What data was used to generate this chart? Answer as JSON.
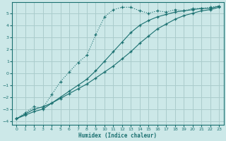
{
  "xlabel": "Humidex (Indice chaleur)",
  "bg_color": "#cce8e8",
  "grid_color": "#aacccc",
  "line_color": "#1a7070",
  "xlim": [
    -0.5,
    23.5
  ],
  "ylim": [
    -4.3,
    5.9
  ],
  "xticks": [
    0,
    1,
    2,
    3,
    4,
    5,
    6,
    7,
    8,
    9,
    10,
    11,
    12,
    13,
    14,
    15,
    16,
    17,
    18,
    19,
    20,
    21,
    22,
    23
  ],
  "yticks": [
    -4,
    -3,
    -2,
    -1,
    0,
    1,
    2,
    3,
    4,
    5
  ],
  "curve1_x": [
    0,
    1,
    2,
    3,
    4,
    5,
    6,
    7,
    8,
    9,
    10,
    11,
    12,
    13,
    14,
    15,
    16,
    17,
    18,
    19,
    20,
    21,
    22,
    23
  ],
  "curve1_y": [
    -3.8,
    -3.3,
    -2.8,
    -2.9,
    -1.8,
    -0.7,
    0.1,
    0.9,
    1.5,
    3.2,
    4.7,
    5.3,
    5.5,
    5.5,
    5.2,
    5.0,
    5.2,
    5.1,
    5.3,
    5.2,
    5.4,
    5.4,
    5.5,
    5.6
  ],
  "curve2_x": [
    0,
    1,
    2,
    3,
    4,
    5,
    6,
    7,
    8,
    9,
    10,
    11,
    12,
    13,
    14,
    15,
    16,
    17,
    18,
    19,
    20,
    21,
    22,
    23
  ],
  "curve2_y": [
    -3.8,
    -3.4,
    -3.0,
    -2.8,
    -2.5,
    -2.0,
    -1.5,
    -1.0,
    -0.5,
    0.2,
    1.0,
    1.8,
    2.6,
    3.4,
    4.0,
    4.4,
    4.7,
    4.9,
    5.1,
    5.2,
    5.3,
    5.4,
    5.4,
    5.6
  ],
  "curve3_x": [
    0,
    1,
    2,
    3,
    4,
    5,
    6,
    7,
    8,
    9,
    10,
    11,
    12,
    13,
    14,
    15,
    16,
    17,
    18,
    19,
    20,
    21,
    22,
    23
  ],
  "curve3_y": [
    -3.8,
    -3.5,
    -3.2,
    -3.0,
    -2.5,
    -2.1,
    -1.7,
    -1.3,
    -0.9,
    -0.4,
    0.1,
    0.6,
    1.2,
    1.8,
    2.5,
    3.1,
    3.7,
    4.1,
    4.5,
    4.8,
    5.0,
    5.2,
    5.3,
    5.5
  ]
}
